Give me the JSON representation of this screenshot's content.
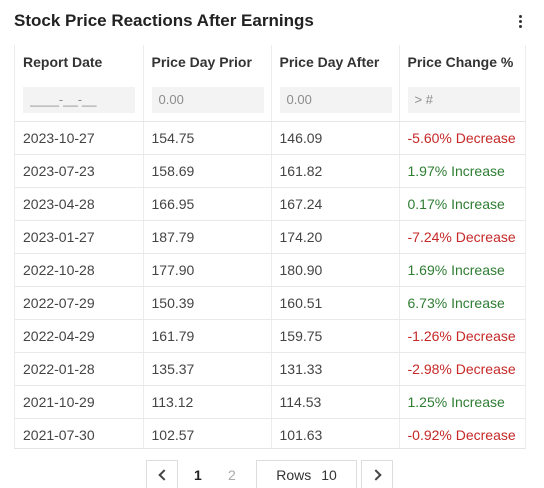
{
  "widget": {
    "title": "Stock Price Reactions After Earnings",
    "menu_icon": "kebab-menu-icon"
  },
  "table": {
    "columns": [
      "Report Date",
      "Price Day Prior",
      "Price Day After",
      "Price Change %"
    ],
    "filters": {
      "date_placeholder": "____-__-__",
      "prior_placeholder": "0.00",
      "after_placeholder": "0.00",
      "change_placeholder": "> #"
    },
    "rows": [
      {
        "date": "2023-10-27",
        "prior": "154.75",
        "after": "146.09",
        "change": "-5.60% Decrease",
        "dir": "decrease"
      },
      {
        "date": "2023-07-23",
        "prior": "158.69",
        "after": "161.82",
        "change": "1.97% Increase",
        "dir": "increase"
      },
      {
        "date": "2023-04-28",
        "prior": "166.95",
        "after": "167.24",
        "change": "0.17% Increase",
        "dir": "increase"
      },
      {
        "date": "2023-01-27",
        "prior": "187.79",
        "after": "174.20",
        "change": "-7.24% Decrease",
        "dir": "decrease"
      },
      {
        "date": "2022-10-28",
        "prior": "177.90",
        "after": "180.90",
        "change": "1.69% Increase",
        "dir": "increase"
      },
      {
        "date": "2022-07-29",
        "prior": "150.39",
        "after": "160.51",
        "change": "6.73% Increase",
        "dir": "increase"
      },
      {
        "date": "2022-04-29",
        "prior": "161.79",
        "after": "159.75",
        "change": "-1.26% Decrease",
        "dir": "decrease"
      },
      {
        "date": "2022-01-28",
        "prior": "135.37",
        "after": "131.33",
        "change": "-2.98% Decrease",
        "dir": "decrease"
      },
      {
        "date": "2021-10-29",
        "prior": "113.12",
        "after": "114.53",
        "change": "1.25% Increase",
        "dir": "increase"
      },
      {
        "date": "2021-07-30",
        "prior": "102.57",
        "after": "101.63",
        "change": "-0.92% Decrease",
        "dir": "decrease"
      }
    ],
    "colors": {
      "increase": "#2e7d32",
      "decrease": "#c62828"
    }
  },
  "pagination": {
    "pages": [
      "1",
      "2"
    ],
    "current_page": "1",
    "rows_label": "Rows",
    "rows_value": "10",
    "prev_icon": "chevron-left-icon",
    "next_icon": "chevron-right-icon"
  }
}
